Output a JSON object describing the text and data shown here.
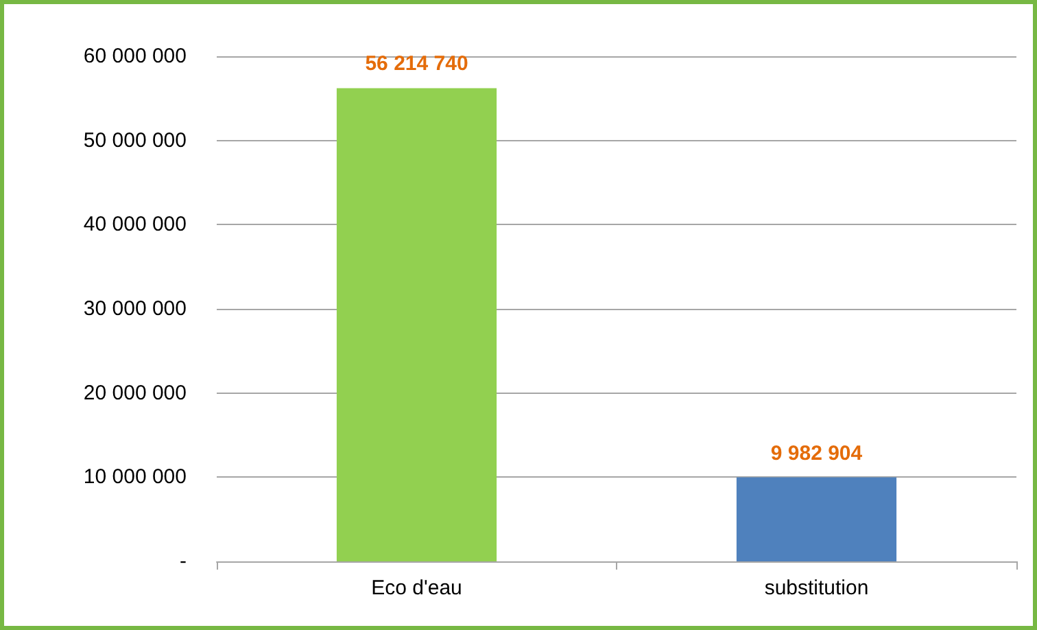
{
  "chart_data": {
    "type": "bar",
    "categories": [
      "Eco d'eau",
      "substitution"
    ],
    "values": [
      56214740,
      9982904
    ],
    "colors": [
      "#92d050",
      "#4f81bd"
    ],
    "value_labels": [
      "56 214 740",
      "9 982 904"
    ],
    "ylim": [
      0,
      60000000
    ],
    "yticks": [
      {
        "value": 0,
        "label": "-"
      },
      {
        "value": 10000000,
        "label": "10 000 000"
      },
      {
        "value": 20000000,
        "label": "20 000 000"
      },
      {
        "value": 30000000,
        "label": "30 000 000"
      },
      {
        "value": 40000000,
        "label": "40 000 000"
      },
      {
        "value": 50000000,
        "label": "50 000 000"
      },
      {
        "value": 60000000,
        "label": "60 000 000"
      }
    ],
    "grid": "y"
  }
}
